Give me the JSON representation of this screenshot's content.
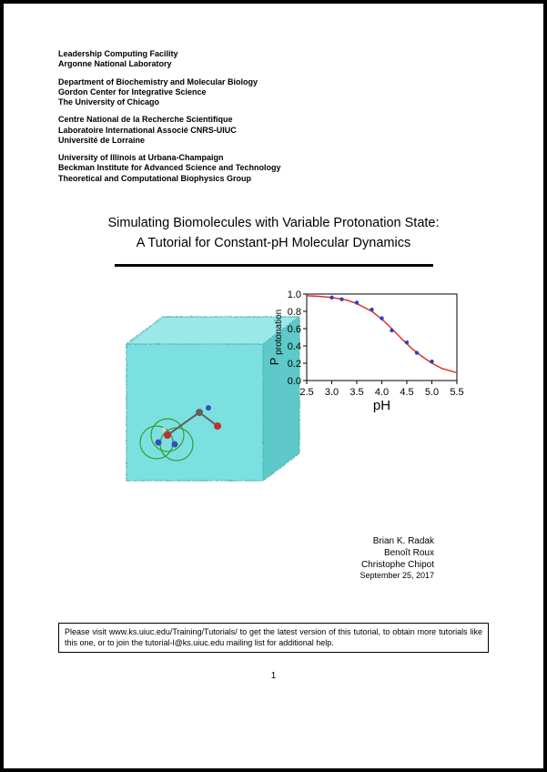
{
  "affiliations": [
    {
      "lines": [
        "Leadership Computing Facility",
        "Argonne National Laboratory"
      ]
    },
    {
      "lines": [
        "Department of Biochemistry and Molecular Biology",
        "Gordon Center for Integrative Science",
        "The University of Chicago"
      ]
    },
    {
      "lines": [
        "Centre National de la Recherche Scientifique",
        "Laboratoire International Associé CNRS-UIUC",
        "Université de Lorraine"
      ]
    },
    {
      "lines": [
        "University of Illinois at Urbana-Champaign",
        "Beckman Institute for Advanced Science and Technology",
        "Theoretical and Computational Biophysics Group"
      ]
    }
  ],
  "title_line1": "Simulating Biomolecules with Variable Protonation State:",
  "title_line2": "A Tutorial for Constant-pH Molecular Dynamics",
  "chart": {
    "type": "line+scatter",
    "xlabel": "pH",
    "ylabel": "P protonation",
    "ylabel_prefix": "P",
    "ylabel_suffix": "protonation",
    "xticks": [
      "2.5",
      "3.0",
      "3.5",
      "4.0",
      "4.5",
      "5.0",
      "5.5"
    ],
    "yticks": [
      "0.0",
      "0.2",
      "0.4",
      "0.6",
      "0.8",
      "1.0"
    ],
    "xlim": [
      2.5,
      5.5
    ],
    "ylim": [
      0.0,
      1.0
    ],
    "curve_color": "#e03030",
    "curve_points": [
      [
        2.5,
        0.98
      ],
      [
        2.7,
        0.975
      ],
      [
        3.0,
        0.96
      ],
      [
        3.3,
        0.93
      ],
      [
        3.5,
        0.89
      ],
      [
        3.8,
        0.8
      ],
      [
        4.0,
        0.71
      ],
      [
        4.2,
        0.6
      ],
      [
        4.4,
        0.48
      ],
      [
        4.6,
        0.37
      ],
      [
        4.8,
        0.28
      ],
      [
        5.0,
        0.2
      ],
      [
        5.2,
        0.14
      ],
      [
        5.5,
        0.09
      ]
    ],
    "marker_color": "#3040c0",
    "markers": [
      [
        3.0,
        0.96
      ],
      [
        3.2,
        0.94
      ],
      [
        3.5,
        0.9
      ],
      [
        3.8,
        0.82
      ],
      [
        4.0,
        0.72
      ],
      [
        4.5,
        0.44
      ],
      [
        4.2,
        0.58
      ],
      [
        4.7,
        0.32
      ],
      [
        5.0,
        0.22
      ]
    ],
    "axis_color": "#000000",
    "tick_fontsize": 11,
    "label_fontsize": 13,
    "background_color": "#ffffff"
  },
  "cube": {
    "fill_color": "#7de0e0",
    "edge_color": "#4ab8b8",
    "molecule_colors": {
      "nitrogen": "#3050c0",
      "oxygen": "#c03030",
      "hydrogen": "#d0d0d0",
      "carbon": "#606060",
      "ring_color": "#30a030"
    }
  },
  "authors": [
    "Brian K. Radak",
    "Benoît Roux",
    "Christophe Chipot"
  ],
  "date": "September 25, 2017",
  "footer_text": "Please visit www.ks.uiuc.edu/Training/Tutorials/ to get the latest version of this tutorial, to obtain more tutorials like this one, or to join the tutorial-l@ks.uiuc.edu mailing list for additional help.",
  "page_number": "1"
}
